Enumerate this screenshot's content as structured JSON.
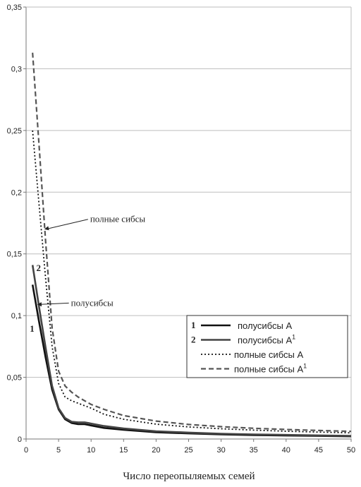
{
  "chart_data": {
    "type": "line",
    "xlabel": "Число переопыляемых семей",
    "ylabel": "",
    "xlim": [
      0,
      50
    ],
    "ylim": [
      0,
      0.35
    ],
    "x_ticks": [
      "0",
      "5",
      "10",
      "15",
      "20",
      "25",
      "30",
      "35",
      "40",
      "45",
      "50"
    ],
    "y_ticks": [
      "0",
      "0,05",
      "0,1",
      "0,15",
      "0,2",
      "0,25",
      "0,3",
      "0,35"
    ],
    "grid": "horizontal",
    "legend_position": "right",
    "series": [
      {
        "name": "полусибсы A",
        "marker": "1",
        "superscript": "",
        "style": "solid",
        "color": "#111111",
        "x": [
          1,
          2,
          3,
          4,
          5,
          6,
          7,
          8,
          9,
          10,
          12,
          15,
          20,
          25,
          30,
          35,
          40,
          45,
          50
        ],
        "y": [
          0.125,
          0.095,
          0.066,
          0.04,
          0.024,
          0.016,
          0.013,
          0.012,
          0.012,
          0.011,
          0.009,
          0.0075,
          0.0055,
          0.0045,
          0.0037,
          0.0032,
          0.0028,
          0.0025,
          0.0022
        ]
      },
      {
        "name": "полусибсы A",
        "marker": "2",
        "superscript": "1",
        "style": "solid",
        "color": "#444444",
        "x": [
          1,
          2,
          3,
          4,
          5,
          6,
          7,
          8,
          9,
          10,
          12,
          15,
          20,
          25,
          30,
          35,
          40,
          45,
          50
        ],
        "y": [
          0.141,
          0.107,
          0.074,
          0.043,
          0.025,
          0.017,
          0.014,
          0.0135,
          0.0135,
          0.0125,
          0.0105,
          0.0085,
          0.0063,
          0.0052,
          0.0043,
          0.0037,
          0.0033,
          0.0029,
          0.0026
        ]
      },
      {
        "name": "полные сибсы A",
        "marker": "",
        "superscript": "",
        "style": "dotted",
        "color": "#111111",
        "x": [
          1,
          2,
          3,
          4,
          5,
          6,
          7,
          8,
          9,
          10,
          12,
          15,
          20,
          25,
          30,
          35,
          40,
          45,
          50
        ],
        "y": [
          0.25,
          0.19,
          0.13,
          0.075,
          0.045,
          0.034,
          0.031,
          0.029,
          0.027,
          0.025,
          0.02,
          0.016,
          0.012,
          0.0098,
          0.0083,
          0.0072,
          0.0063,
          0.0056,
          0.005
        ]
      },
      {
        "name": "полные сибсы A",
        "marker": "",
        "superscript": "1",
        "style": "dashed",
        "color": "#555555",
        "x": [
          1,
          2,
          3,
          4,
          5,
          6,
          7,
          8,
          9,
          10,
          12,
          15,
          20,
          25,
          30,
          35,
          40,
          45,
          50
        ],
        "y": [
          0.313,
          0.238,
          0.16,
          0.09,
          0.055,
          0.043,
          0.038,
          0.034,
          0.031,
          0.028,
          0.024,
          0.019,
          0.0145,
          0.0118,
          0.01,
          0.0087,
          0.0077,
          0.0069,
          0.0062
        ]
      }
    ],
    "annotations": [
      {
        "text": "полные сибсы",
        "target_x": 2.8,
        "target_y": 0.17
      },
      {
        "text": "полусибсы",
        "target_x": 1.7,
        "target_y": 0.109
      }
    ],
    "curve_labels": [
      {
        "text": "1",
        "x": 1.0,
        "y": 0.087
      },
      {
        "text": "2",
        "x": 2.0,
        "y": 0.136
      }
    ]
  }
}
